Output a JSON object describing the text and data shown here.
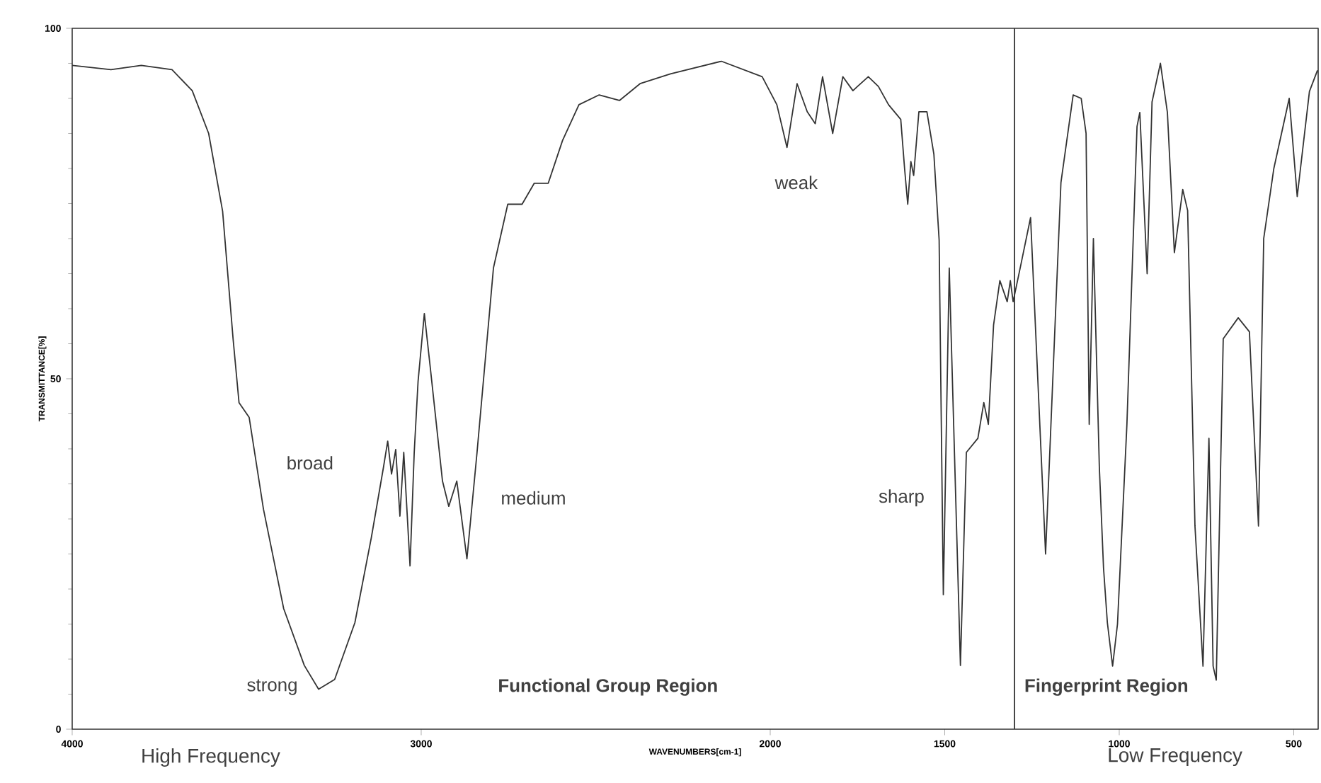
{
  "chart_data": {
    "type": "line",
    "xlabel": "WAVENUMBERS[cm-1]",
    "ylabel": "TRANSMITTANCE[%]",
    "xlim": [
      4000,
      430
    ],
    "ylim": [
      0,
      100
    ],
    "xticks": [
      4000,
      3000,
      2000,
      1500,
      1000,
      500
    ],
    "yticks": [
      0,
      50,
      100
    ],
    "grid": false,
    "marker": "none",
    "line_style": "solid",
    "series": [
      {
        "color": "#333333",
        "x": [
          4000,
          3889,
          3802,
          3714,
          3656,
          3609,
          3569,
          3539,
          3522,
          3493,
          3452,
          3394,
          3335,
          3294,
          3248,
          3190,
          3143,
          3108,
          3096,
          3085,
          3073,
          3061,
          3050,
          3032,
          3020,
          3009,
          2991,
          2974,
          2939,
          2921,
          2898,
          2869,
          2840,
          2793,
          2752,
          2711,
          2676,
          2636,
          2595,
          2548,
          2490,
          2432,
          2373,
          2286,
          2140,
          2023,
          1981,
          1952,
          1923,
          1894,
          1871,
          1850,
          1821,
          1792,
          1763,
          1750,
          1719,
          1690,
          1661,
          1626,
          1615,
          1606,
          1597,
          1589,
          1574,
          1551,
          1531,
          1516,
          1504,
          1487,
          1455,
          1438,
          1405,
          1388,
          1375,
          1360,
          1342,
          1321,
          1312,
          1304,
          1283,
          1254,
          1211,
          1167,
          1132,
          1109,
          1095,
          1086,
          1074,
          1057,
          1045,
          1034,
          1019,
          1005,
          978,
          949,
          941,
          920,
          906,
          882,
          862,
          842,
          818,
          804,
          783,
          760,
          743,
          731,
          722,
          702,
          659,
          627,
          601,
          586,
          557,
          513,
          490,
          455,
          432
        ],
        "values": [
          94.7,
          94.1,
          94.7,
          94.1,
          91.1,
          85,
          73.9,
          55.7,
          46.6,
          44.5,
          31.4,
          17.2,
          9.1,
          5.7,
          7.1,
          15.2,
          27.3,
          37.4,
          41.1,
          36.4,
          39.9,
          30.4,
          39.5,
          23.3,
          39.5,
          49.6,
          59.3,
          51.6,
          35.4,
          31.8,
          35.4,
          24.3,
          39.5,
          65.8,
          74.9,
          74.9,
          77.9,
          77.9,
          84,
          89.1,
          90.5,
          89.7,
          92.1,
          93.5,
          95.3,
          93.1,
          89.1,
          83,
          92.1,
          88.1,
          86.4,
          93.1,
          85,
          93.1,
          91.1,
          91.7,
          93.1,
          91.7,
          89.1,
          87,
          80,
          74.9,
          81,
          79,
          88.1,
          88.1,
          82,
          69.8,
          19.2,
          65.8,
          9.1,
          39.5,
          41.5,
          46.6,
          43.5,
          57.7,
          64,
          61,
          64,
          61,
          66,
          73,
          25,
          78,
          90.5,
          90,
          85,
          43.5,
          70,
          37.4,
          23,
          15.2,
          9,
          15,
          43.5,
          86,
          88,
          65,
          89.5,
          95,
          88,
          68,
          77,
          74,
          29,
          9,
          41.5,
          9,
          7,
          55.7,
          58.7,
          56.7,
          29,
          70,
          80,
          90,
          76,
          91,
          94
        ]
      }
    ],
    "ref_lines": [
      {
        "axis": "x",
        "value": 1300,
        "color": "#333333"
      }
    ],
    "annotations": [
      "strong",
      "broad",
      "medium",
      "weak",
      "sharp",
      "**Functional Group Region**",
      "**Fingerprint Region**",
      "High Frequency",
      "Low Frequency"
    ]
  }
}
